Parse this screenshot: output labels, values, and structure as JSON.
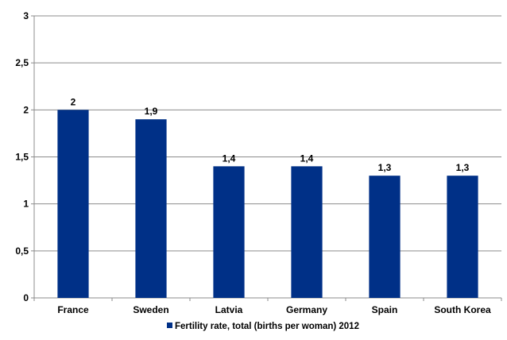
{
  "chart_data": {
    "type": "bar",
    "categories": [
      "France",
      "Sweden",
      "Latvia",
      "Germany",
      "Spain",
      "South Korea"
    ],
    "series": [
      {
        "name": "Fertility rate, total (births per woman) 2012",
        "values": [
          2,
          1.9,
          1.4,
          1.4,
          1.3,
          1.3
        ],
        "color": "#003087"
      }
    ],
    "data_labels": [
      "2",
      "1,9",
      "1,4",
      "1,4",
      "1,3",
      "1,3"
    ],
    "y_ticks": [
      "0",
      "0,5",
      "1",
      "1,5",
      "2",
      "2,5",
      "3"
    ],
    "ylim": [
      0,
      3
    ],
    "y_step": 0.5,
    "grid": true,
    "legend_position": "bottom",
    "title": "",
    "xlabel": "",
    "ylabel": ""
  }
}
